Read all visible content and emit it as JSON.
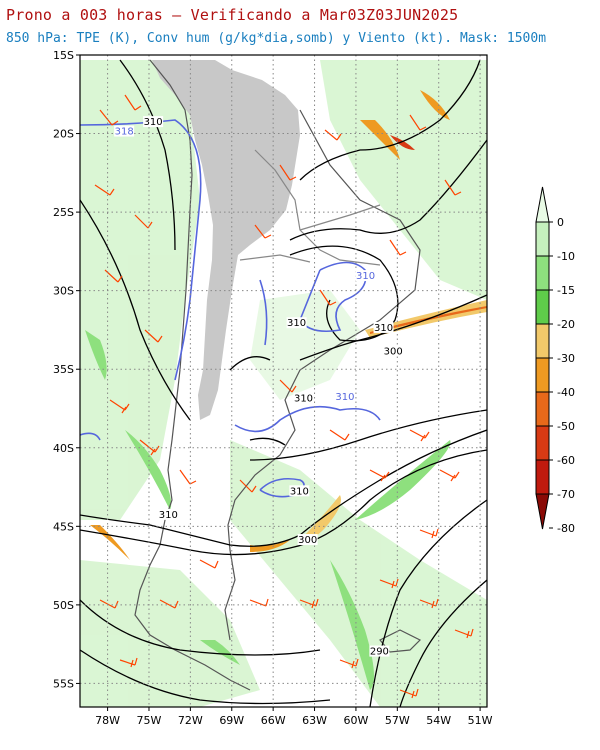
{
  "header": {
    "title": "Prono a 003 horas — Verificando a Mar03Z03JUN2025",
    "subtitle": "850 hPa: TPE (K), Conv hum (g/kg*dia,somb) y Viento (kt). Mask: 1500m"
  },
  "map": {
    "lat_range": [
      -56.5,
      -15
    ],
    "lon_range": [
      -80,
      -50.5
    ],
    "lat_ticks": [
      "15S",
      "20S",
      "25S",
      "30S",
      "35S",
      "40S",
      "45S",
      "50S",
      "55S"
    ],
    "lon_ticks": [
      "78W",
      "75W",
      "72W",
      "69W",
      "66W",
      "63W",
      "60W",
      "57W",
      "54W",
      "51W"
    ],
    "lat_tick_values": [
      -15,
      -20,
      -25,
      -30,
      -35,
      -40,
      -45,
      -50,
      -55
    ],
    "lon_tick_values": [
      -78,
      -75,
      -72,
      -69,
      -66,
      -63,
      -60,
      -57,
      -54,
      -51
    ],
    "grid": "dotted",
    "contour_labels": [
      {
        "text": "310",
        "lon": -74.7,
        "lat": -19.4,
        "color": "#000000"
      },
      {
        "text": "318",
        "lon": -76.8,
        "lat": -20.0,
        "color": "#5566dd"
      },
      {
        "text": "310",
        "lon": -59.3,
        "lat": -29.2,
        "color": "#5566dd"
      },
      {
        "text": "310",
        "lon": -64.3,
        "lat": -32.2,
        "color": "#000000"
      },
      {
        "text": "310",
        "lon": -58.0,
        "lat": -32.5,
        "color": "#000000"
      },
      {
        "text": "300",
        "lon": -57.3,
        "lat": -34.0,
        "color": "#000000"
      },
      {
        "text": "310",
        "lon": -63.8,
        "lat": -37.0,
        "color": "#000000"
      },
      {
        "text": "310",
        "lon": -60.8,
        "lat": -36.9,
        "color": "#5566dd"
      },
      {
        "text": "310",
        "lon": -64.1,
        "lat": -42.9,
        "color": "#000000"
      },
      {
        "text": "310",
        "lon": -73.6,
        "lat": -44.4,
        "color": "#000000"
      },
      {
        "text": "300",
        "lon": -63.5,
        "lat": -46.0,
        "color": "#000000"
      },
      {
        "text": "290",
        "lon": -58.3,
        "lat": -53.1,
        "color": "#000000"
      }
    ]
  },
  "colorbar": {
    "levels": [
      "0",
      "-10",
      "-15",
      "-20",
      "-30",
      "-40",
      "-50",
      "-60",
      "-70",
      "-80"
    ],
    "colors": [
      "#e9fbe6",
      "#c6f0be",
      "#8ee07e",
      "#5fcc4a",
      "#f2c96a",
      "#ee9a22",
      "#e8691a",
      "#d83a14",
      "#c01a0e",
      "#8a0a06"
    ]
  },
  "colors": {
    "title": "#b01010",
    "subtitle": "#1a7fbf",
    "tpe_line": "#000000",
    "tpe_line_310": "#5566dd",
    "wind_barb": "#ff4400",
    "terrain_mask": "#c8c8c8",
    "coast": "#555555"
  }
}
